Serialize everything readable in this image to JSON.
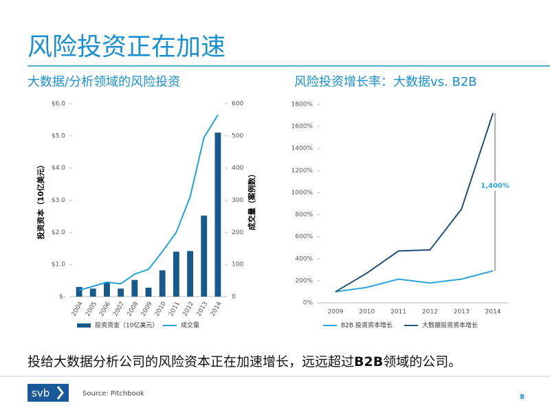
{
  "title": "风险投资正在加速",
  "chart_data": [
    {
      "type": "bar",
      "title": "大数据/分析领域的风险投资",
      "categories": [
        "2004",
        "2005",
        "2006",
        "2007",
        "2008",
        "2009",
        "2010",
        "2011",
        "2012",
        "2013",
        "2014"
      ],
      "series": [
        {
          "name": "投资资金（10亿美元）",
          "type": "bar",
          "color": "#1a5a8a",
          "values": [
            0.3,
            0.25,
            0.45,
            0.25,
            0.52,
            0.28,
            0.82,
            1.4,
            1.42,
            2.52,
            5.1
          ]
        },
        {
          "name": "成交量",
          "type": "line",
          "axis": "y2",
          "color": "#22a0dc",
          "values": [
            20,
            32,
            45,
            40,
            70,
            85,
            140,
            200,
            310,
            495,
            565
          ]
        }
      ],
      "y_label": "投资资本（10亿美元）",
      "y2_label": "成交量（案例数）",
      "ylim": [
        0,
        6
      ],
      "yticks": [
        {
          "value": 0,
          "label": "$-"
        },
        {
          "value": 1,
          "label": "$1.0"
        },
        {
          "value": 2,
          "label": "$2.0"
        },
        {
          "value": 3,
          "label": "$3.0"
        },
        {
          "value": 4,
          "label": "$4.0"
        },
        {
          "value": 5,
          "label": "$5.0"
        },
        {
          "value": 6,
          "label": "$6.0"
        }
      ],
      "y2lim": [
        0,
        600
      ],
      "y2ticks": [
        0,
        100,
        200,
        300,
        400,
        500,
        600
      ],
      "grid": false
    },
    {
      "type": "line",
      "title": "风险投资增长率：大数据vs. B2B",
      "categories": [
        "2009",
        "2010",
        "2011",
        "2012",
        "2013",
        "2014"
      ],
      "series": [
        {
          "name": "B2B 投资资本增长",
          "color": "#29a3dc",
          "values": [
            100,
            140,
            215,
            180,
            215,
            290
          ]
        },
        {
          "name": "大数据投资资本增长",
          "color": "#1f4e79",
          "values": [
            100,
            270,
            470,
            480,
            850,
            1720
          ]
        }
      ],
      "ylim": [
        0,
        1800
      ],
      "yticks": [
        {
          "value": 0,
          "label": "0%"
        },
        {
          "value": 200,
          "label": "200%"
        },
        {
          "value": 400,
          "label": "400%"
        },
        {
          "value": 600,
          "label": "600%"
        },
        {
          "value": 800,
          "label": "800%"
        },
        {
          "value": 1000,
          "label": "1000%"
        },
        {
          "value": 1200,
          "label": "1200%"
        },
        {
          "value": 1400,
          "label": "1400%"
        },
        {
          "value": 1600,
          "label": "1600%"
        },
        {
          "value": 1800,
          "label": "1800%"
        }
      ],
      "annotation": "1,400%",
      "grid": false
    }
  ],
  "conclusion": [
    "投给大数据分析公司的风险资本正在加速增长，远远超过",
    "B2B",
    "领域的公司。"
  ],
  "logo": "svb",
  "source": "Source: Pitchbook",
  "page_number": "8"
}
